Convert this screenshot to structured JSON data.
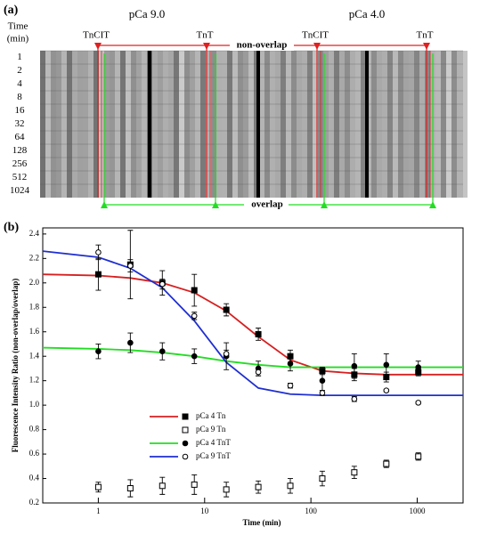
{
  "panel_a": {
    "label": "(a)",
    "time_label": [
      "Time",
      "(min)"
    ],
    "conditions": [
      "pCa 9.0",
      "pCa 4.0"
    ],
    "markers": [
      "TnCIT",
      "TnT",
      "TnCIT",
      "TnT"
    ],
    "non_overlap": "non-overlap",
    "overlap": "overlap",
    "times": [
      1,
      2,
      4,
      8,
      16,
      32,
      64,
      128,
      256,
      512,
      1024
    ]
  },
  "chart_data": {
    "type": "scatter",
    "label": "(b)",
    "ylabel": "Fluorescence  Intensity  Ratio  (non-overlap/overlap)",
    "xlabel": "Time (min)",
    "log_x": true,
    "xlim": [
      0.3,
      2700
    ],
    "ylim": [
      0.2,
      2.45
    ],
    "xticks": [
      1,
      10,
      100,
      1000
    ],
    "yticks": [
      0.2,
      0.4,
      0.6,
      0.8,
      {
        "value": 1,
        "label": "1.0"
      },
      1.2,
      1.4,
      1.6,
      1.8,
      {
        "value": 2,
        "label": "2.0"
      },
      2.2,
      2.4
    ],
    "x": [
      1,
      2,
      4,
      8,
      16,
      32,
      64,
      128,
      256,
      512,
      1024
    ],
    "fit_x": [
      0.3,
      1,
      2,
      4,
      8,
      16,
      32,
      64,
      128,
      256,
      512,
      1024,
      2700
    ],
    "series": [
      {
        "name": "pCa 4 Tn",
        "color": "#d62020",
        "marker": "filled-square",
        "values": [
          2.07,
          2.15,
          2.0,
          1.94,
          1.78,
          1.58,
          1.4,
          1.28,
          1.25,
          1.23,
          1.27
        ],
        "errors": [
          0.13,
          0.28,
          0.1,
          0.13,
          0.05,
          0.05,
          0.05,
          0.03,
          0.05,
          0.04,
          0.03
        ],
        "fit": [
          2.07,
          2.06,
          2.04,
          2.0,
          1.92,
          1.77,
          1.56,
          1.37,
          1.28,
          1.26,
          1.25,
          1.25,
          1.25
        ]
      },
      {
        "name": "pCa 9 Tn",
        "marker": "open-square",
        "values": [
          0.33,
          0.32,
          0.34,
          0.35,
          0.31,
          0.33,
          0.34,
          0.4,
          0.45,
          0.52,
          0.58
        ],
        "errors": [
          0.04,
          0.07,
          0.07,
          0.08,
          0.06,
          0.05,
          0.06,
          0.06,
          0.05,
          0.03,
          0.03
        ]
      },
      {
        "name": "pCa 4 TnT",
        "color": "#22dd22",
        "marker": "filled-circle",
        "values": [
          1.44,
          1.51,
          1.44,
          1.4,
          1.4,
          1.3,
          1.34,
          1.2,
          1.32,
          1.33,
          1.31
        ],
        "errors": [
          0.06,
          0.08,
          0.07,
          0.06,
          0.11,
          0.06,
          0.06,
          0.08,
          0.1,
          0.09,
          0.05
        ],
        "fit": [
          1.47,
          1.46,
          1.45,
          1.43,
          1.4,
          1.36,
          1.33,
          1.31,
          1.31,
          1.31,
          1.31,
          1.31,
          1.31
        ]
      },
      {
        "name": "pCa 9 TnT",
        "color": "#1f2fd0",
        "marker": "open-circle",
        "values": [
          2.25,
          2.14,
          1.99,
          1.73,
          1.42,
          1.27,
          1.16,
          1.1,
          1.05,
          1.12,
          1.02
        ],
        "errors": [
          0.06,
          0.05,
          0.04,
          0.03,
          0.03,
          0.03,
          0.02,
          0.02,
          0.02,
          0.01,
          0.01
        ],
        "fit": [
          2.26,
          2.21,
          2.12,
          1.96,
          1.69,
          1.35,
          1.14,
          1.09,
          1.08,
          1.08,
          1.08,
          1.08,
          1.08
        ]
      }
    ]
  }
}
